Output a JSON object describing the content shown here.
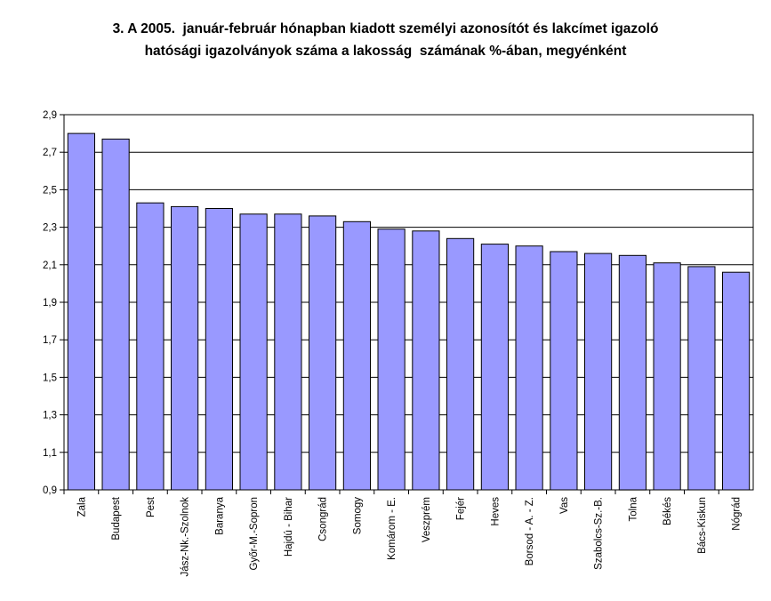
{
  "chart_data": {
    "type": "bar",
    "title_lines": [
      "3. A 2005.  január-február hónapban kiadott személyi azonosítót és lakcímet igazoló",
      "hatósági igazolványok száma a lakosság  számának %-ában, megyénként"
    ],
    "xlabel": "",
    "ylabel": "",
    "ylim": [
      0.9,
      2.9
    ],
    "yticks": [
      "0,9",
      "1,1",
      "1,3",
      "1,5",
      "1,7",
      "1,9",
      "2,1",
      "2,3",
      "2,5",
      "2,7",
      "2,9"
    ],
    "grid": true,
    "categories": [
      "Zala",
      "Budapest",
      "Pest",
      "Jász-Nk.-Szolnok",
      "Baranya",
      "Győr-M.-Sopron",
      "Hajdú - Bihar",
      "Csongrád",
      "Somogy",
      "Komárom - E.",
      "Veszprém",
      "Fejér",
      "Heves",
      "Borsod - A. - Z.",
      "Vas",
      "Szabolcs-Sz.-B.",
      "Tolna",
      "Békés",
      "Bács-Kiskun",
      "Nógrád"
    ],
    "values": [
      2.8,
      2.77,
      2.43,
      2.41,
      2.4,
      2.37,
      2.37,
      2.36,
      2.33,
      2.29,
      2.28,
      2.24,
      2.21,
      2.2,
      2.17,
      2.16,
      2.15,
      2.11,
      2.09,
      2.06
    ],
    "colors": {
      "bar_fill": "#9999FF",
      "bar_stroke": "#000000",
      "grid": "#000000"
    }
  }
}
